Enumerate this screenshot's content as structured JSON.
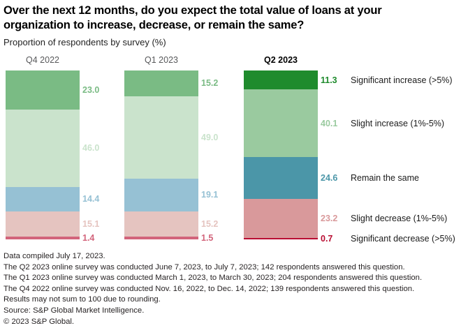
{
  "title": "Over the next 12 months, do you expect the total value of loans at your organization to increase, decrease, or remain the same?",
  "subtitle": "Proportion of respondents by survey (%)",
  "chart_data": {
    "type": "bar",
    "stacked": true,
    "orientation": "vertical",
    "unit": "percent",
    "ylim": [
      0,
      100
    ],
    "grid": false,
    "categories": [
      "Significant increase (>5%)",
      "Slight increase (1%-5%)",
      "Remain the same",
      "Slight decrease (1%-5%)",
      "Significant decrease (>5%)"
    ],
    "series": [
      {
        "name": "Q4 2022",
        "emphasis": false,
        "values": [
          23.0,
          46.0,
          14.4,
          15.1,
          1.4
        ]
      },
      {
        "name": "Q1 2023",
        "emphasis": false,
        "values": [
          15.2,
          49.0,
          19.1,
          15.2,
          1.5
        ]
      },
      {
        "name": "Q2 2023",
        "emphasis": true,
        "values": [
          11.3,
          40.1,
          24.6,
          23.2,
          0.7
        ]
      }
    ],
    "colors": {
      "emphasis": [
        "#1f8b2d",
        "#9aca9f",
        "#4b96a8",
        "#d9999b",
        "#b90d32"
      ],
      "muted": [
        "#7abb84",
        "#cae3cc",
        "#96c1d4",
        "#e5c4c0",
        "#d2647b"
      ]
    },
    "header_color_muted": "#58595b",
    "header_color_emphasis": "#000000",
    "legend_position": "right-of-last-bar"
  },
  "footnotes": [
    "Data compiled July 17, 2023.",
    "The Q2 2023 online survey was conducted June 7, 2023, to July 7, 2023; 142 respondents answered this question.",
    "The Q1 2023 online survey was conducted March 1, 2023, to March 30, 2023; 204 respondents answered this question.",
    "The Q4 2022 online survey was conducted Nov. 16, 2022, to Dec. 14, 2022; 139 respondents answered this question.",
    "Results may not sum to 100 due to rounding.",
    "Source: S&P Global Market Intelligence.",
    "© 2023 S&P Global."
  ]
}
